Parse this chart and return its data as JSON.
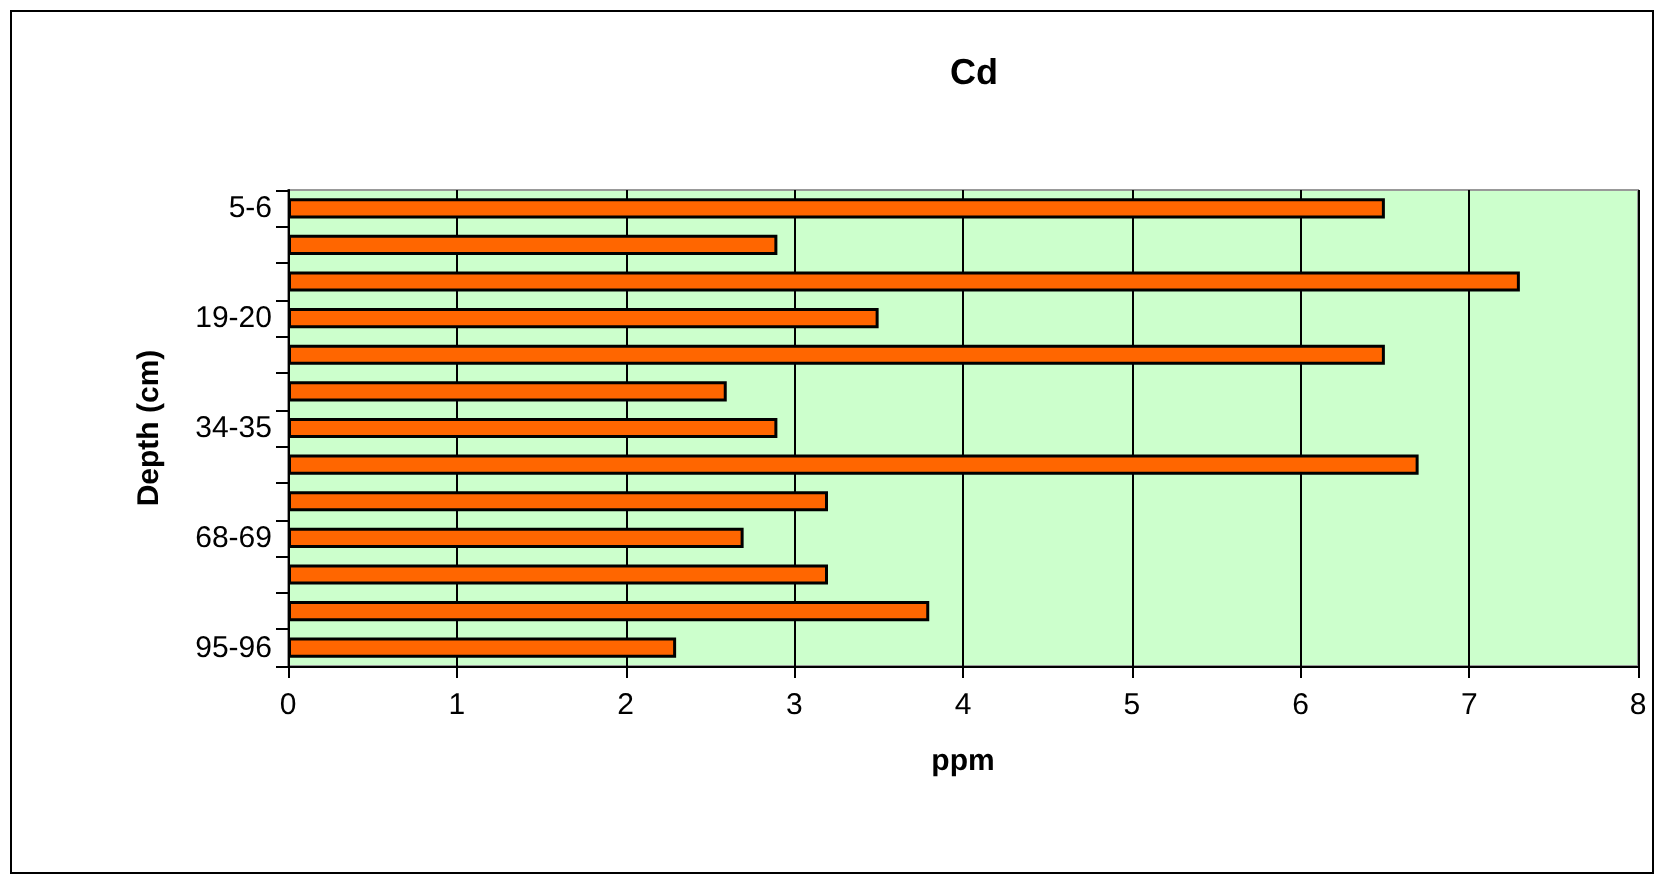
{
  "chart_data": {
    "type": "bar",
    "orientation": "horizontal",
    "title": "Cd",
    "xlabel": "ppm",
    "ylabel": "Depth (cm)",
    "categories": [
      "5-6",
      null,
      null,
      "19-20",
      null,
      null,
      "34-35",
      null,
      null,
      "68-69",
      null,
      null,
      "95-96"
    ],
    "values": [
      6.5,
      2.9,
      7.3,
      3.5,
      6.5,
      2.6,
      2.9,
      6.7,
      3.2,
      2.7,
      3.2,
      3.8,
      2.3
    ],
    "color": "#ff6600",
    "xlim": [
      0,
      8
    ],
    "xticks": [
      0,
      1,
      2,
      3,
      4,
      5,
      6,
      7,
      8
    ],
    "grid": "x"
  }
}
